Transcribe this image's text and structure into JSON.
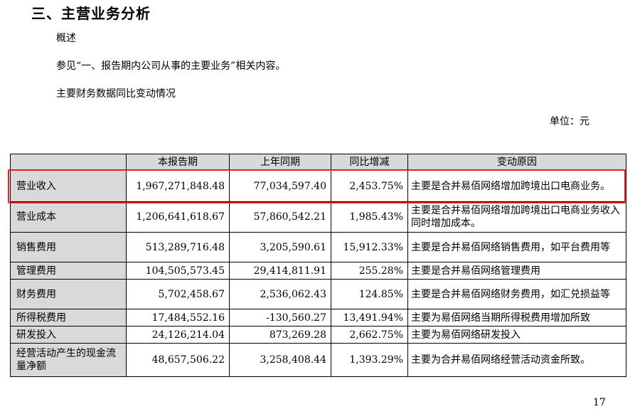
{
  "section_title": "三、主营业务分析",
  "overview_heading": "概述",
  "overview_text": "参见“一、报告期内公司从事的主要业务”相关内容。",
  "change_heading": "主要财务数据同比变动情况",
  "unit_label": "单位：元",
  "table": {
    "headers": [
      "",
      "本报告期",
      "上年同期",
      "同比增减",
      "变动原因"
    ],
    "rows": [
      {
        "item": "营业收入",
        "current": "1,967,271,848.48",
        "prior": "77,034,597.40",
        "change": "2,453.75%",
        "reason": "主要是合并易佰网络增加跨境出口电商业务。"
      },
      {
        "item": "营业成本",
        "current": "1,206,641,618.67",
        "prior": "57,860,542.21",
        "change": "1,985.43%",
        "reason": "主要是合并易佰网络增加跨境出口电商业务收入同时增加成本。"
      },
      {
        "item": "销售费用",
        "current": "513,289,716.48",
        "prior": "3,205,590.61",
        "change": "15,912.33%",
        "reason": "主要是合并易佰网络销售费用，如平台费用等"
      },
      {
        "item": "管理费用",
        "current": "104,505,573.45",
        "prior": "29,414,811.91",
        "change": "255.28%",
        "reason": "主要是合并易佰网络管理费用"
      },
      {
        "item": "财务费用",
        "current": "5,702,458.67",
        "prior": "2,536,062.43",
        "change": "124.85%",
        "reason": "主要是合并易佰网络财务费用，如汇兑损益等"
      },
      {
        "item": "所得税费用",
        "current": "17,484,552.16",
        "prior": "-130,560.27",
        "change": "13,491.94%",
        "reason": "主要为易佰网络当期所得税费用增加所致"
      },
      {
        "item": "研发投入",
        "current": "24,126,214.04",
        "prior": "873,269.28",
        "change": "2,662.75%",
        "reason": "主要为易佰网络研发投入"
      },
      {
        "item": "经营活动产生的现金流量净额",
        "current": "48,657,506.22",
        "prior": "3,258,408.44",
        "change": "1,393.29%",
        "reason": "主要为合并易佰网络经营活动资金所致。"
      }
    ]
  },
  "highlight_color": "#e3231c",
  "page_number": "17"
}
